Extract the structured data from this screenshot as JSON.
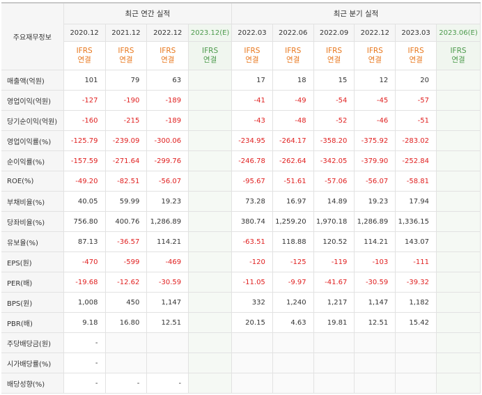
{
  "header": {
    "row_label": "주요재무정보",
    "annual_title": "최근 연간 실적",
    "quarterly_title": "최근 분기 실적"
  },
  "periods": [
    {
      "label": "2020.12",
      "estimate": false
    },
    {
      "label": "2021.12",
      "estimate": false
    },
    {
      "label": "2022.12",
      "estimate": false
    },
    {
      "label": "2023.12(E)",
      "estimate": true
    },
    {
      "label": "2022.03",
      "estimate": false
    },
    {
      "label": "2022.06",
      "estimate": false
    },
    {
      "label": "2022.09",
      "estimate": false
    },
    {
      "label": "2022.12",
      "estimate": false
    },
    {
      "label": "2023.03",
      "estimate": false
    },
    {
      "label": "2023.06(E)",
      "estimate": true
    }
  ],
  "ifrs_line1": "IFRS",
  "ifrs_line2": "연결",
  "rows": [
    {
      "label": "매출액(억원)",
      "values": [
        "101",
        "79",
        "63",
        "",
        "17",
        "18",
        "15",
        "12",
        "20",
        ""
      ]
    },
    {
      "label": "영업이익(억원)",
      "values": [
        "-127",
        "-190",
        "-189",
        "",
        "-41",
        "-49",
        "-54",
        "-45",
        "-57",
        ""
      ]
    },
    {
      "label": "당기순이익(억원)",
      "values": [
        "-160",
        "-215",
        "-189",
        "",
        "-43",
        "-48",
        "-52",
        "-46",
        "-51",
        ""
      ]
    },
    {
      "label": "영업이익률(%)",
      "values": [
        "-125.79",
        "-239.09",
        "-300.06",
        "",
        "-234.95",
        "-264.17",
        "-358.20",
        "-375.92",
        "-283.02",
        ""
      ]
    },
    {
      "label": "순이익률(%)",
      "values": [
        "-157.59",
        "-271.64",
        "-299.76",
        "",
        "-246.78",
        "-262.64",
        "-342.05",
        "-379.90",
        "-252.84",
        ""
      ]
    },
    {
      "label": "ROE(%)",
      "values": [
        "-49.20",
        "-82.51",
        "-56.07",
        "",
        "-95.67",
        "-51.61",
        "-57.06",
        "-56.07",
        "-58.81",
        ""
      ]
    },
    {
      "label": "부채비율(%)",
      "values": [
        "40.05",
        "59.99",
        "19.23",
        "",
        "73.28",
        "16.97",
        "14.89",
        "19.23",
        "17.94",
        ""
      ]
    },
    {
      "label": "당좌비율(%)",
      "values": [
        "756.80",
        "400.76",
        "1,286.89",
        "",
        "380.74",
        "1,259.20",
        "1,970.18",
        "1,286.89",
        "1,336.15",
        ""
      ]
    },
    {
      "label": "유보율(%)",
      "values": [
        "87.13",
        "-36.57",
        "114.21",
        "",
        "-63.51",
        "118.88",
        "120.52",
        "114.21",
        "143.07",
        ""
      ]
    },
    {
      "label": "EPS(원)",
      "values": [
        "-470",
        "-599",
        "-469",
        "",
        "-120",
        "-125",
        "-119",
        "-103",
        "-111",
        ""
      ]
    },
    {
      "label": "PER(배)",
      "values": [
        "-19.68",
        "-12.62",
        "-30.59",
        "",
        "-11.05",
        "-9.97",
        "-41.67",
        "-30.59",
        "-39.32",
        ""
      ]
    },
    {
      "label": "BPS(원)",
      "values": [
        "1,008",
        "450",
        "1,147",
        "",
        "332",
        "1,240",
        "1,217",
        "1,147",
        "1,182",
        ""
      ]
    },
    {
      "label": "PBR(배)",
      "values": [
        "9.18",
        "16.80",
        "12.51",
        "",
        "20.15",
        "4.63",
        "19.81",
        "12.51",
        "15.42",
        ""
      ]
    },
    {
      "label": "주당배당금(원)",
      "values": [
        "-",
        "",
        "",
        "",
        "",
        "",
        "",
        "",
        "",
        ""
      ]
    },
    {
      "label": "시가배당률(%)",
      "values": [
        "-",
        "",
        "",
        "",
        "",
        "",
        "",
        "",
        "",
        ""
      ]
    },
    {
      "label": "배당성향(%)",
      "values": [
        "-",
        "-",
        "-",
        "",
        "",
        "",
        "",
        "",
        "",
        ""
      ]
    }
  ]
}
